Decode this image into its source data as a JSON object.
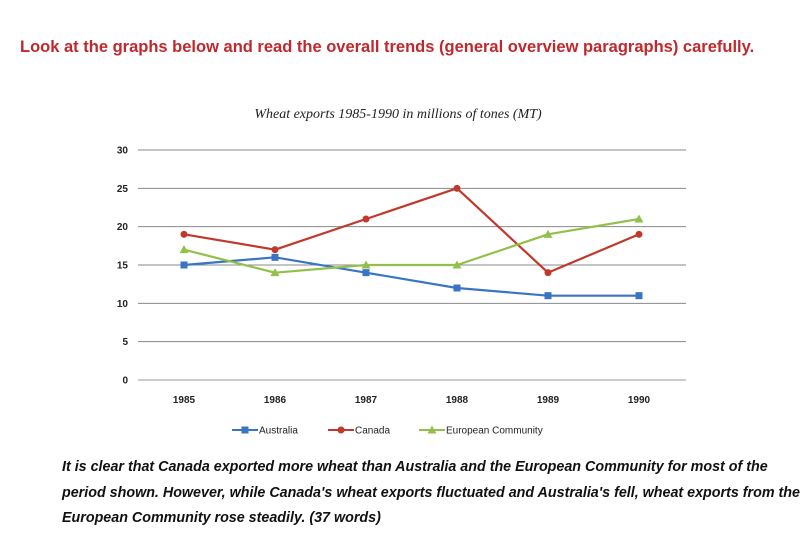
{
  "heading": "Look at the graphs below and read the overall trends (general overview paragraphs) carefully.",
  "summary": "It is clear that Canada exported more wheat than Australia and the European Community for most of the period shown. However, while Canada's wheat exports fluctuated and Australia's fell, wheat exports from the European Community rose steadily. (37 words)",
  "chart_data": {
    "type": "line",
    "title": "Wheat exports 1985-1990 in millions of tones (MT)",
    "xlabel": "",
    "ylabel": "",
    "x": [
      "1985",
      "1986",
      "1987",
      "1988",
      "1989",
      "1990"
    ],
    "ylim": [
      0,
      30
    ],
    "yticks": [
      "0",
      "5",
      "10",
      "15",
      "20",
      "25",
      "30"
    ],
    "grid": true,
    "legend": "bottom",
    "series": [
      {
        "name": "Australia",
        "color": "#3a74c4",
        "marker": "square",
        "values": [
          15,
          16,
          14,
          12,
          11,
          11
        ]
      },
      {
        "name": "Canada",
        "color": "#c0392b",
        "marker": "circle",
        "values": [
          19,
          17,
          21,
          25,
          14,
          19
        ]
      },
      {
        "name": "European Community",
        "color": "#92c04a",
        "marker": "triangle",
        "values": [
          17,
          14,
          15,
          15,
          19,
          21
        ]
      }
    ]
  }
}
